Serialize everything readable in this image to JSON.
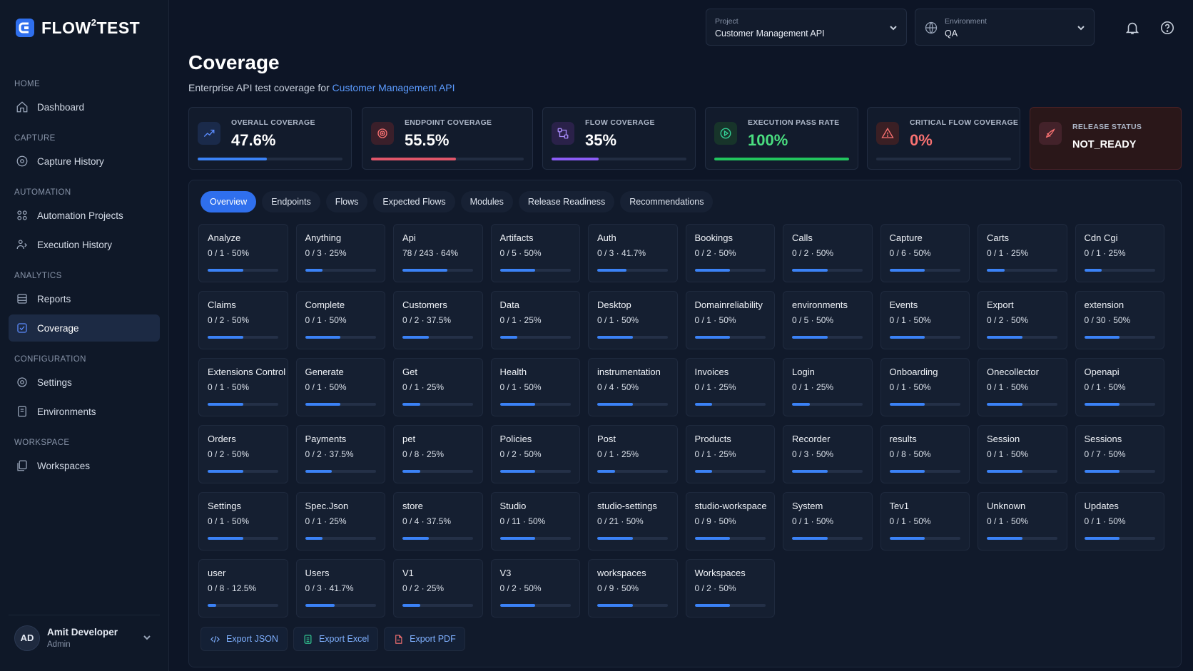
{
  "app": {
    "name_prefix": "FLOW",
    "name_sup": "2",
    "name_suffix": "TEST"
  },
  "sidebar": {
    "sections": {
      "home": "HOME",
      "capture": "CAPTURE",
      "automation": "AUTOMATION",
      "analytics": "ANALYTICS",
      "configuration": "CONFIGURATION",
      "workspace": "WORKSPACE"
    },
    "items": {
      "dashboard": "Dashboard",
      "capture_history": "Capture History",
      "automation_projects": "Automation Projects",
      "execution_history": "Execution History",
      "reports": "Reports",
      "coverage": "Coverage",
      "settings": "Settings",
      "environments": "Environments",
      "workspaces": "Workspaces"
    },
    "user": {
      "initials": "AD",
      "name": "Amit Developer",
      "role": "Admin"
    }
  },
  "header": {
    "project": {
      "label": "Project",
      "value": "Customer Management API"
    },
    "environment": {
      "label": "Environment",
      "value": "QA"
    }
  },
  "page": {
    "title": "Coverage",
    "subtitle": "Enterprise API test coverage for ",
    "subtitle_link": "Customer Management API"
  },
  "kpis": [
    {
      "label": "OVERALL COVERAGE",
      "value": "47.6%",
      "fill": 0.476,
      "color": "#3b82f6",
      "icon": "trend-icon"
    },
    {
      "label": "ENDPOINT COVERAGE",
      "value": "55.5%",
      "fill": 0.555,
      "color": "#e0566a",
      "icon": "target-icon"
    },
    {
      "label": "FLOW COVERAGE",
      "value": "35%",
      "fill": 0.35,
      "color": "#8b5cf6",
      "icon": "flow-icon"
    },
    {
      "label": "EXECUTION PASS RATE",
      "value": "100%",
      "fill": 1.0,
      "color": "#22c55e",
      "icon": "play-circle-icon"
    },
    {
      "label": "CRITICAL FLOW COVERAGE",
      "value": "0%",
      "fill": 0.0,
      "color": "#f87171",
      "icon": "warning-icon"
    },
    {
      "label": "RELEASE STATUS",
      "value": "NOT_READY",
      "icon": "rocket-icon"
    }
  ],
  "tabs": [
    "Overview",
    "Endpoints",
    "Flows",
    "Expected Flows",
    "Modules",
    "Release Readiness",
    "Recommendations"
  ],
  "modules": [
    {
      "name": "Analyze",
      "stat": "0 / 1 · 50%",
      "pct": 50
    },
    {
      "name": "Anything",
      "stat": "0 / 3 · 25%",
      "pct": 25
    },
    {
      "name": "Api",
      "stat": "78 / 243 · 64%",
      "pct": 64
    },
    {
      "name": "Artifacts",
      "stat": "0 / 5 · 50%",
      "pct": 50
    },
    {
      "name": "Auth",
      "stat": "0 / 3 · 41.7%",
      "pct": 41.7
    },
    {
      "name": "Bookings",
      "stat": "0 / 2 · 50%",
      "pct": 50
    },
    {
      "name": "Calls",
      "stat": "0 / 2 · 50%",
      "pct": 50
    },
    {
      "name": "Capture",
      "stat": "0 / 6 · 50%",
      "pct": 50
    },
    {
      "name": "Carts",
      "stat": "0 / 1 · 25%",
      "pct": 25
    },
    {
      "name": "Cdn Cgi",
      "stat": "0 / 1 · 25%",
      "pct": 25
    },
    {
      "name": "Claims",
      "stat": "0 / 2 · 50%",
      "pct": 50
    },
    {
      "name": "Complete",
      "stat": "0 / 1 · 50%",
      "pct": 50
    },
    {
      "name": "Customers",
      "stat": "0 / 2 · 37.5%",
      "pct": 37.5
    },
    {
      "name": "Data",
      "stat": "0 / 1 · 25%",
      "pct": 25
    },
    {
      "name": "Desktop",
      "stat": "0 / 1 · 50%",
      "pct": 50
    },
    {
      "name": "Domainreliability",
      "stat": "0 / 1 · 50%",
      "pct": 50
    },
    {
      "name": "environments",
      "stat": "0 / 5 · 50%",
      "pct": 50
    },
    {
      "name": "Events",
      "stat": "0 / 1 · 50%",
      "pct": 50
    },
    {
      "name": "Export",
      "stat": "0 / 2 · 50%",
      "pct": 50
    },
    {
      "name": "extension",
      "stat": "0 / 30 · 50%",
      "pct": 50
    },
    {
      "name": "Extensions Control",
      "stat": "0 / 1 · 50%",
      "pct": 50
    },
    {
      "name": "Generate",
      "stat": "0 / 1 · 50%",
      "pct": 50
    },
    {
      "name": "Get",
      "stat": "0 / 1 · 25%",
      "pct": 25
    },
    {
      "name": "Health",
      "stat": "0 / 1 · 50%",
      "pct": 50
    },
    {
      "name": "instrumentation",
      "stat": "0 / 4 · 50%",
      "pct": 50
    },
    {
      "name": "Invoices",
      "stat": "0 / 1 · 25%",
      "pct": 25
    },
    {
      "name": "Login",
      "stat": "0 / 1 · 25%",
      "pct": 25
    },
    {
      "name": "Onboarding",
      "stat": "0 / 1 · 50%",
      "pct": 50
    },
    {
      "name": "Onecollector",
      "stat": "0 / 1 · 50%",
      "pct": 50
    },
    {
      "name": "Openapi",
      "stat": "0 / 1 · 50%",
      "pct": 50
    },
    {
      "name": "Orders",
      "stat": "0 / 2 · 50%",
      "pct": 50
    },
    {
      "name": "Payments",
      "stat": "0 / 2 · 37.5%",
      "pct": 37.5
    },
    {
      "name": "pet",
      "stat": "0 / 8 · 25%",
      "pct": 25
    },
    {
      "name": "Policies",
      "stat": "0 / 2 · 50%",
      "pct": 50
    },
    {
      "name": "Post",
      "stat": "0 / 1 · 25%",
      "pct": 25
    },
    {
      "name": "Products",
      "stat": "0 / 1 · 25%",
      "pct": 25
    },
    {
      "name": "Recorder",
      "stat": "0 / 3 · 50%",
      "pct": 50
    },
    {
      "name": "results",
      "stat": "0 / 8 · 50%",
      "pct": 50
    },
    {
      "name": "Session",
      "stat": "0 / 1 · 50%",
      "pct": 50
    },
    {
      "name": "Sessions",
      "stat": "0 / 7 · 50%",
      "pct": 50
    },
    {
      "name": "Settings",
      "stat": "0 / 1 · 50%",
      "pct": 50
    },
    {
      "name": "Spec.Json",
      "stat": "0 / 1 · 25%",
      "pct": 25
    },
    {
      "name": "store",
      "stat": "0 / 4 · 37.5%",
      "pct": 37.5
    },
    {
      "name": "Studio",
      "stat": "0 / 11 · 50%",
      "pct": 50
    },
    {
      "name": "studio-settings",
      "stat": "0 / 21 · 50%",
      "pct": 50
    },
    {
      "name": "studio-workspace",
      "stat": "0 / 9 · 50%",
      "pct": 50
    },
    {
      "name": "System",
      "stat": "0 / 1 · 50%",
      "pct": 50
    },
    {
      "name": "Tev1",
      "stat": "0 / 1 · 50%",
      "pct": 50
    },
    {
      "name": "Unknown",
      "stat": "0 / 1 · 50%",
      "pct": 50
    },
    {
      "name": "Updates",
      "stat": "0 / 1 · 50%",
      "pct": 50
    },
    {
      "name": "user",
      "stat": "0 / 8 · 12.5%",
      "pct": 12.5
    },
    {
      "name": "Users",
      "stat": "0 / 3 · 41.7%",
      "pct": 41.7
    },
    {
      "name": "V1",
      "stat": "0 / 2 · 25%",
      "pct": 25
    },
    {
      "name": "V3",
      "stat": "0 / 2 · 50%",
      "pct": 50
    },
    {
      "name": "workspaces",
      "stat": "0 / 9 · 50%",
      "pct": 50
    },
    {
      "name": "Workspaces",
      "stat": "0 / 2 · 50%",
      "pct": 50
    }
  ],
  "exports": {
    "json": "Export JSON",
    "excel": "Export Excel",
    "pdf": "Export PDF"
  }
}
